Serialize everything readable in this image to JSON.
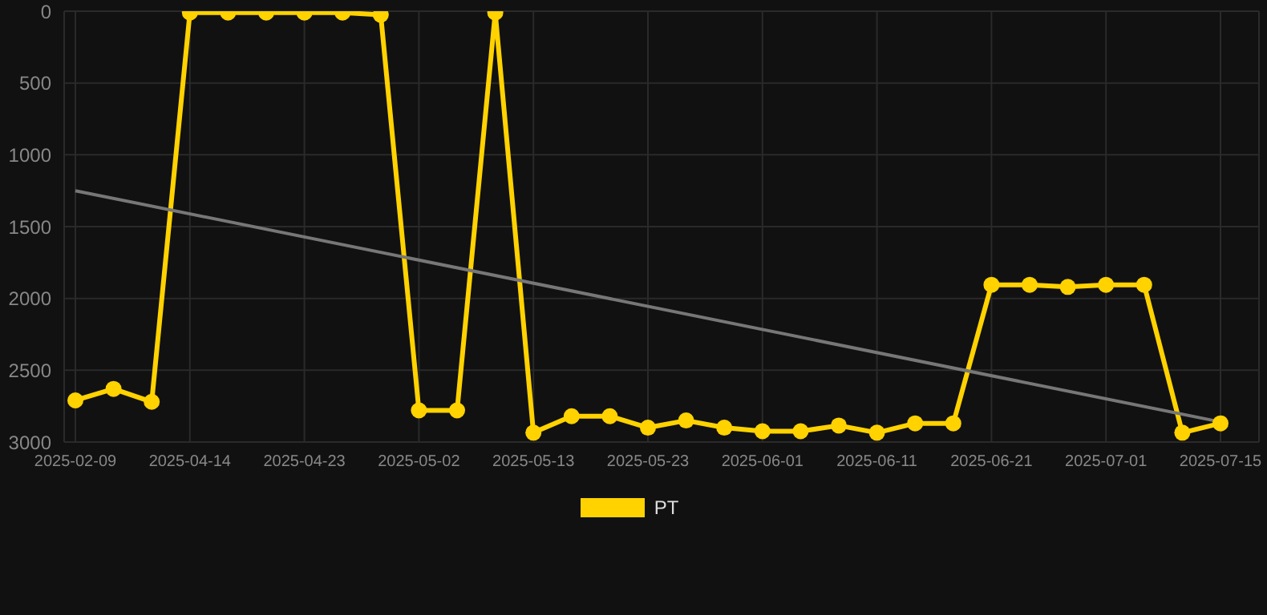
{
  "chart_data": {
    "type": "line",
    "categories": [
      "2025-02-09",
      null,
      null,
      "2025-04-14",
      null,
      null,
      "2025-04-23",
      null,
      null,
      "2025-05-02",
      null,
      null,
      "2025-05-13",
      null,
      null,
      "2025-05-23",
      null,
      null,
      "2025-06-01",
      null,
      null,
      "2025-06-11",
      null,
      null,
      "2025-06-21",
      null,
      null,
      "2025-07-01",
      null,
      null,
      "2025-07-15"
    ],
    "series": [
      {
        "name": "PT",
        "color": "#ffd200",
        "values": [
          2710,
          2630,
          2720,
          10,
          10,
          10,
          10,
          10,
          25,
          2780,
          2780,
          10,
          2935,
          2820,
          2820,
          2900,
          2850,
          2900,
          2925,
          2925,
          2885,
          2935,
          2870,
          2870,
          1905,
          1905,
          1920,
          1905,
          1905,
          2935,
          2870
        ]
      },
      {
        "type": "line",
        "color": "#777777",
        "marker": "none",
        "values": [
          1250,
          null,
          null,
          null,
          null,
          null,
          null,
          null,
          null,
          null,
          null,
          null,
          null,
          null,
          null,
          null,
          null,
          null,
          null,
          null,
          null,
          null,
          null,
          null,
          null,
          null,
          null,
          null,
          null,
          null,
          2860
        ]
      }
    ],
    "ylim": [
      3000,
      0
    ],
    "yticks": [
      0,
      500,
      1000,
      1500,
      2000,
      2500,
      3000
    ],
    "grid": true,
    "legend": "bottom",
    "marker": "circle",
    "line_style": "solid"
  }
}
